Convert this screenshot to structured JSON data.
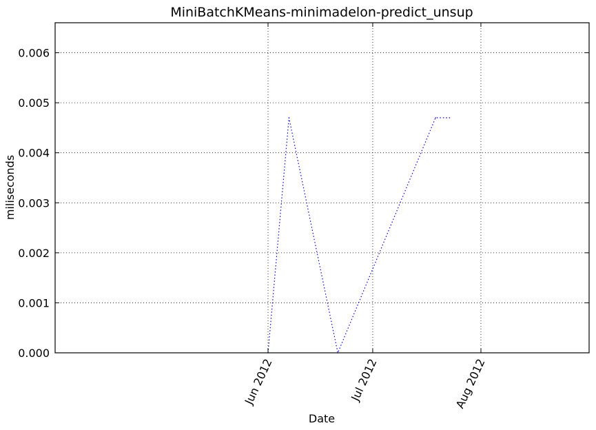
{
  "chart_data": {
    "type": "line",
    "title": "MiniBatchKMeans-minimadelon-predict_unsup",
    "xlabel": "Date",
    "ylabel": "miliseconds",
    "x_axis_kind": "date",
    "xlim": [
      "2012-04-01",
      "2012-09-01"
    ],
    "ylim": [
      0,
      0.0066
    ],
    "x_ticks": [
      {
        "date": "2012-06-01",
        "label": "Jun 2012"
      },
      {
        "date": "2012-07-01",
        "label": "Jul 2012"
      },
      {
        "date": "2012-08-01",
        "label": "Aug 2012"
      }
    ],
    "y_ticks": [
      {
        "value": 0,
        "label": "0.000"
      },
      {
        "value": 0.001,
        "label": "0.001"
      },
      {
        "value": 0.002,
        "label": "0.002"
      },
      {
        "value": 0.003,
        "label": "0.003"
      },
      {
        "value": 0.004,
        "label": "0.004"
      },
      {
        "value": 0.005,
        "label": "0.005"
      },
      {
        "value": 0.006,
        "label": "0.006"
      }
    ],
    "grid": true,
    "series": [
      {
        "color": "#0000ff",
        "line_style": "dotted",
        "points": [
          {
            "x": "2012-06-01",
            "y": 0.0
          },
          {
            "x": "2012-06-07",
            "y": 0.0047
          },
          {
            "x": "2012-06-21",
            "y": 0.0
          },
          {
            "x": "2012-07-19",
            "y": 0.0047
          },
          {
            "x": "2012-07-23",
            "y": 0.0047
          }
        ]
      }
    ]
  }
}
